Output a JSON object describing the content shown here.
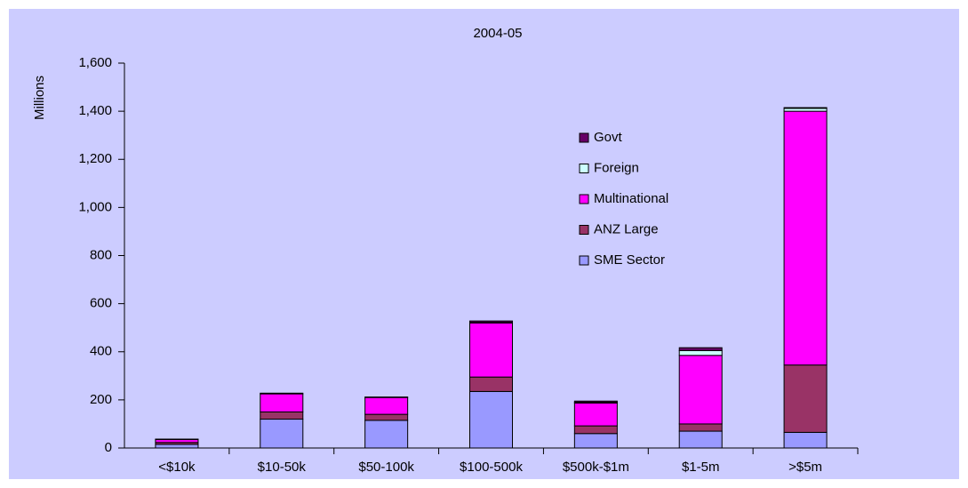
{
  "chart_data": {
    "type": "bar",
    "stacked": true,
    "title": "2004-05",
    "y_label": "Millions",
    "categories": [
      "<$10k",
      "$10-50k",
      "$50-100k",
      "$100-500k",
      "$500k-$1m",
      "$1-5m",
      ">$5m"
    ],
    "series": [
      {
        "name": "SME Sector",
        "color": "#9999ff",
        "values": [
          15,
          120,
          115,
          235,
          60,
          70,
          65
        ]
      },
      {
        "name": "ANZ Large",
        "color": "#993366",
        "values": [
          8,
          30,
          25,
          60,
          32,
          30,
          280
        ]
      },
      {
        "name": "Multinational",
        "color": "#ff00ff",
        "values": [
          12,
          75,
          70,
          225,
          95,
          285,
          1055
        ]
      },
      {
        "name": "Foreign",
        "color": "#ccffff",
        "values": [
          0,
          0,
          0,
          2,
          3,
          20,
          12
        ]
      },
      {
        "name": "Govt",
        "color": "#660066",
        "values": [
          2,
          3,
          2,
          6,
          5,
          12,
          3
        ]
      }
    ],
    "ylim": [
      0,
      1600
    ],
    "yticks": [
      0,
      200,
      400,
      600,
      800,
      {
        "value": 1000,
        "label": "1,000"
      },
      {
        "value": 1200,
        "label": "1,200"
      },
      {
        "value": 1400,
        "label": "1,400"
      },
      {
        "value": 1600,
        "label": "1,600"
      }
    ],
    "grid": false
  }
}
